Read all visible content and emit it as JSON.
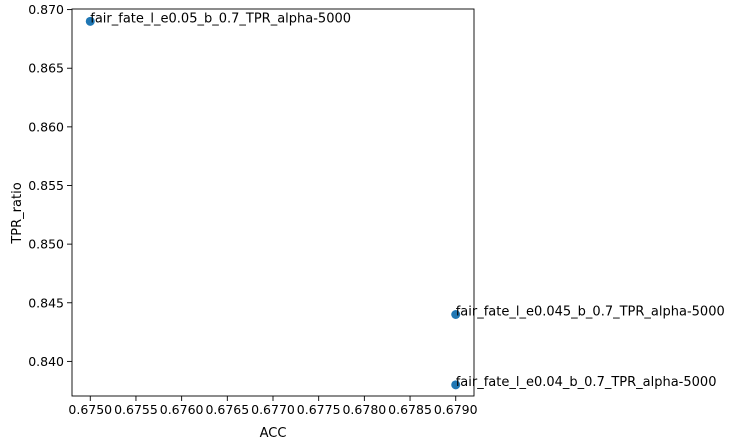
{
  "chart_data": {
    "type": "scatter",
    "title": "",
    "xlabel": "ACC",
    "ylabel": "TPR_ratio",
    "xlim": [
      0.6748,
      0.6792
    ],
    "ylim": [
      0.83705,
      0.87005
    ],
    "xticks": [
      0.675,
      0.6755,
      0.676,
      0.6765,
      0.677,
      0.6775,
      0.678,
      0.6785,
      0.679
    ],
    "xtick_labels": [
      "0.6750",
      "0.6755",
      "0.6760",
      "0.6765",
      "0.6770",
      "0.6775",
      "0.6780",
      "0.6785",
      "0.6790"
    ],
    "yticks": [
      0.84,
      0.845,
      0.85,
      0.855,
      0.86,
      0.865,
      0.87
    ],
    "ytick_labels": [
      "0.840",
      "0.845",
      "0.850",
      "0.855",
      "0.860",
      "0.865",
      "0.870"
    ],
    "grid": false,
    "marker_color": "#1f77b4",
    "points": [
      {
        "x": 0.675,
        "y": 0.869,
        "label": "fair_fate_l_e0.05_b_0.7_TPR_alpha-5000"
      },
      {
        "x": 0.679,
        "y": 0.844,
        "label": "fair_fate_l_e0.045_b_0.7_TPR_alpha-5000"
      },
      {
        "x": 0.679,
        "y": 0.838,
        "label": "fair_fate_l_e0.04_b_0.7_TPR_alpha-5000"
      }
    ]
  }
}
